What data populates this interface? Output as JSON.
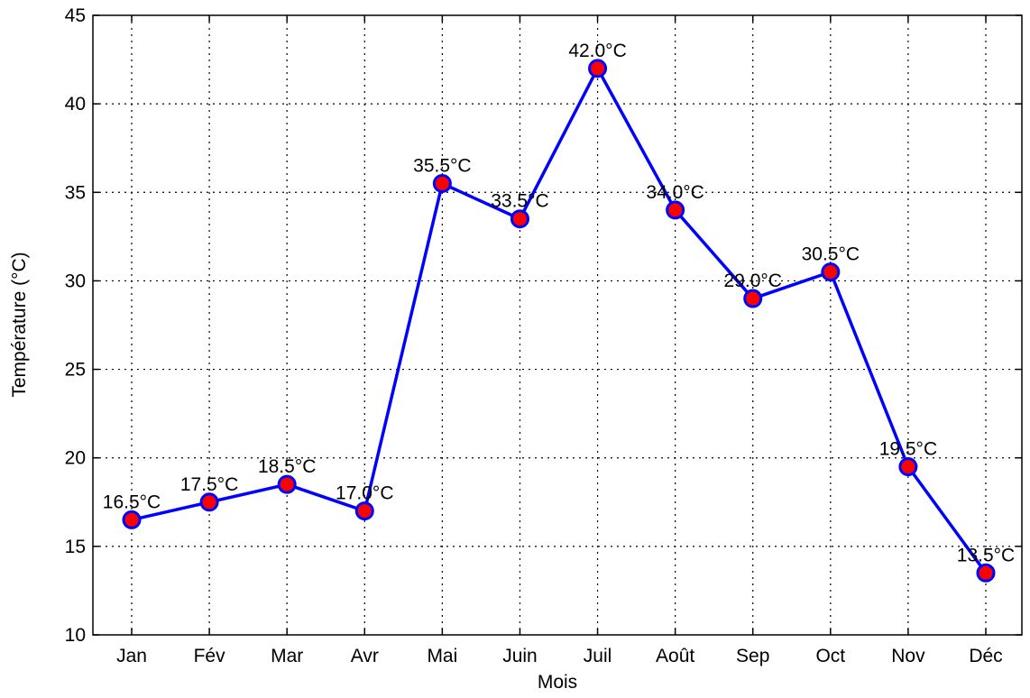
{
  "chart_data": {
    "type": "line",
    "title": "",
    "xlabel": "Mois",
    "ylabel": "Température (°C)",
    "categories": [
      "Jan",
      "Fév",
      "Mar",
      "Avr",
      "Mai",
      "Juin",
      "Juil",
      "Août",
      "Sep",
      "Oct",
      "Nov",
      "Déc"
    ],
    "series": [
      {
        "values": [
          16.5,
          17.5,
          18.5,
          17.0,
          35.5,
          33.5,
          42.0,
          34.0,
          29.0,
          30.5,
          19.5,
          13.5
        ],
        "line_color": "#0000ff",
        "marker_fill": "#ff0000",
        "marker_edge": "#0000ff"
      }
    ],
    "data_labels": [
      "16.5°C",
      "17.5°C",
      "18.5°C",
      "17.0°C",
      "35.5°C",
      "33.5°C",
      "42.0°C",
      "34.0°C",
      "29.0°C",
      "30.5°C",
      "19.5°C",
      "13.5°C"
    ],
    "ylim": [
      10,
      45
    ],
    "yticks": [
      "10",
      "15",
      "20",
      "25",
      "30",
      "35",
      "40",
      "45"
    ],
    "grid": true,
    "legend": "none"
  }
}
